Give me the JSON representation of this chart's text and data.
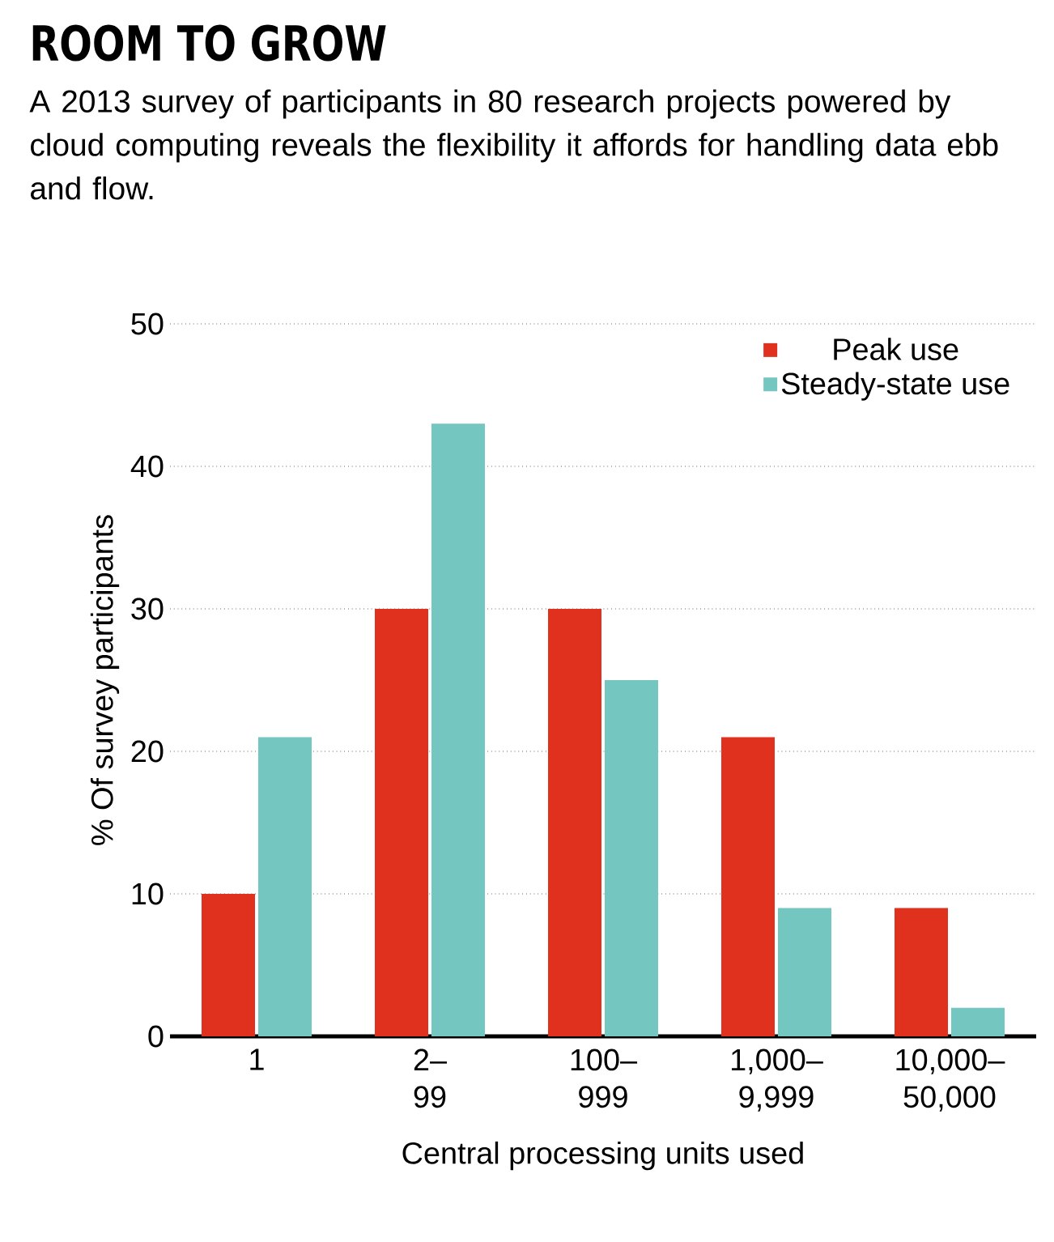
{
  "chart_data": {
    "type": "bar",
    "title": "ROOM TO GROW",
    "subtitle": "A 2013 survey of participants in 80 research projects powered by cloud computing reveals the flexibility it affords for handling data ebb and flow.",
    "xlabel": "Central processing units used",
    "ylabel": "% Of survey participants",
    "categories": [
      "1",
      "2–99",
      "100–999",
      "1,000–9,999",
      "10,000–50,000"
    ],
    "series": [
      {
        "name": "Peak use",
        "color": "#e0301e",
        "values": [
          10,
          30,
          30,
          21,
          9
        ]
      },
      {
        "name": "Steady-state use",
        "color": "#74c6c0",
        "values": [
          21,
          43,
          25,
          9,
          2
        ]
      }
    ],
    "ylim": [
      0,
      50
    ],
    "yticks": [
      0,
      10,
      20,
      30,
      40,
      50
    ],
    "grid": "y",
    "legend": "top right"
  }
}
